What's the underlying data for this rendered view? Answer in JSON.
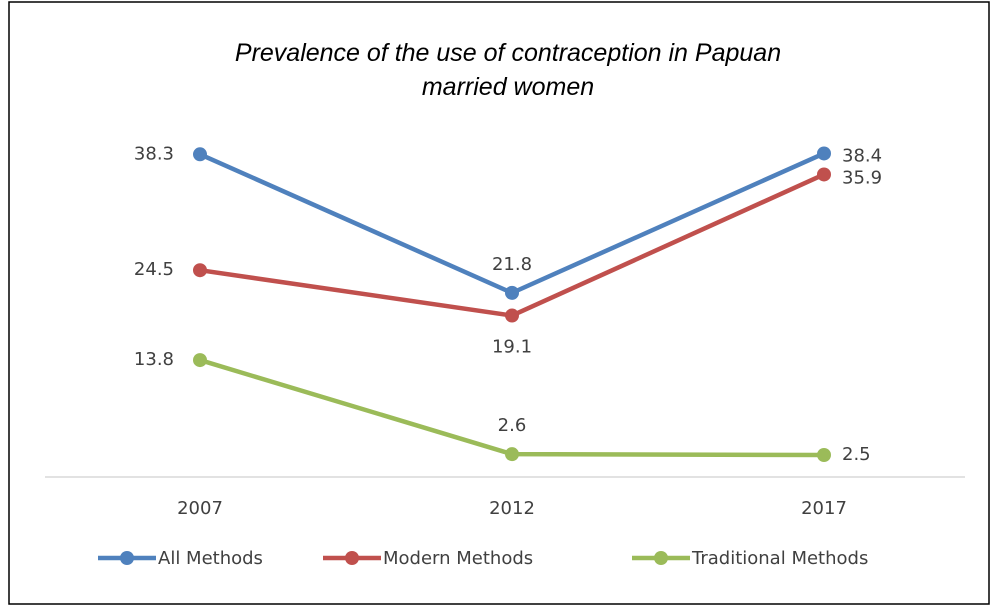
{
  "chart_data": {
    "type": "line",
    "title": "Prevalence of  the use of contraception in Papuan married women",
    "categories": [
      "2007",
      "2012",
      "2017"
    ],
    "series": [
      {
        "name": "All Methods",
        "color": "#4f81bd",
        "values": [
          38.3,
          21.8,
          38.4
        ]
      },
      {
        "name": "Modern Methods",
        "color": "#c0504d",
        "values": [
          24.5,
          19.1,
          35.9
        ]
      },
      {
        "name": "Traditional Methods",
        "color": "#9bbb59",
        "values": [
          13.8,
          2.6,
          2.5
        ]
      }
    ],
    "ylim": [
      0,
      45
    ],
    "legend": "bottom"
  }
}
